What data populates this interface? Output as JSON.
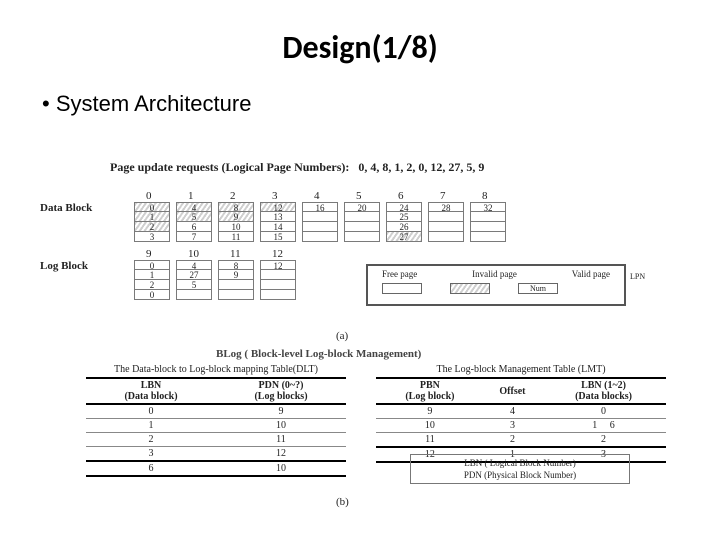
{
  "title": "Design(1/8)",
  "bullet": "System Architecture",
  "request_line": "Page update requests (Logical Page Numbers):   0, 4, 8, 1, 2, 0, 12, 27, 5, 9",
  "labels": {
    "data_block": "Data Block",
    "log_block": "Log Block",
    "part_a": "(a)",
    "part_b": "(b)",
    "mid_title": "BLog ( Block-level  Log-block Management)"
  },
  "data_block_headers": [
    "0",
    "1",
    "2",
    "3",
    "4",
    "5",
    "6",
    "7",
    "8"
  ],
  "data_blocks": [
    {
      "cells": [
        "0",
        "1",
        "2",
        "3"
      ],
      "wavy": [
        0,
        1,
        2
      ]
    },
    {
      "cells": [
        "4",
        "5",
        "6",
        "7"
      ],
      "wavy": [
        0,
        1
      ]
    },
    {
      "cells": [
        "8",
        "9",
        "10",
        "11"
      ],
      "wavy": [
        0,
        1
      ]
    },
    {
      "cells": [
        "12",
        "13",
        "14",
        "15"
      ],
      "wavy": [
        0
      ]
    },
    {
      "cells": [
        "16",
        "",
        "",
        ""
      ],
      "wavy": []
    },
    {
      "cells": [
        "20",
        "",
        "",
        ""
      ],
      "wavy": []
    },
    {
      "cells": [
        "24",
        "25",
        "26",
        "27"
      ],
      "wavy": [
        3
      ]
    },
    {
      "cells": [
        "28",
        "",
        "",
        ""
      ],
      "wavy": []
    },
    {
      "cells": [
        "32",
        "",
        "",
        ""
      ],
      "wavy": []
    }
  ],
  "log_block_headers": [
    "9",
    "10",
    "11",
    "12"
  ],
  "log_blocks": [
    {
      "cells": [
        "0",
        "1",
        "2",
        "0"
      ]
    },
    {
      "cells": [
        "4",
        "27",
        "5",
        ""
      ]
    },
    {
      "cells": [
        "8",
        "9",
        "",
        ""
      ]
    },
    {
      "cells": [
        "12",
        "",
        "",
        ""
      ]
    }
  ],
  "legend": {
    "h1": "Free page",
    "h2": "Invalid page",
    "h3": "Valid page",
    "num": "Num",
    "lpn": "LPN"
  },
  "dlt": {
    "title": "The Data-block to Log-block mapping Table(DLT)",
    "head": [
      "LBN\n(Data block)",
      "PDN (0~?)\n(Log blocks)"
    ],
    "rows": [
      [
        "0",
        "9"
      ],
      [
        "1",
        "10"
      ],
      [
        "2",
        "11"
      ],
      [
        "3",
        "12"
      ],
      [
        "6",
        "10"
      ]
    ]
  },
  "lmt": {
    "title": "The Log-block Management Table (LMT)",
    "head": [
      "PBN\n(Log block)",
      "Offset",
      "LBN (1~2)\n(Data blocks)"
    ],
    "rows": [
      [
        "9",
        "4",
        "0"
      ],
      [
        "10",
        "3",
        "1     6"
      ],
      [
        "11",
        "2",
        "2"
      ],
      [
        "12",
        "1",
        "3"
      ]
    ]
  },
  "keybox": {
    "l1": "LBN ( Logical Block Number)",
    "l2": "PDN (Physical Block Number)"
  }
}
